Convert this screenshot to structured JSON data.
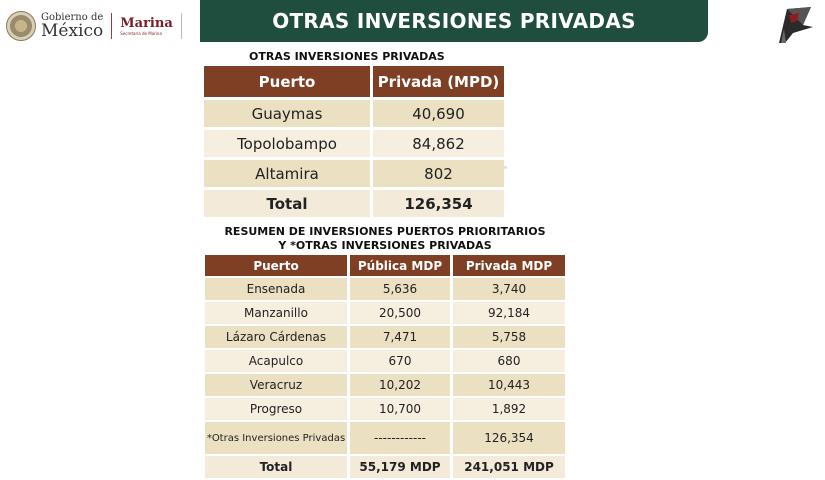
{
  "header": {
    "title": "OTRAS INVERSIONES PRIVADAS"
  },
  "logo": {
    "line1": "Gobierno de",
    "line2": "México",
    "marina": "Marina",
    "marina_sub": "Secretaría de Marina"
  },
  "table1": {
    "title": "OTRAS INVERSIONES PRIVADAS",
    "headers": [
      "Puerto",
      "Privada (MPD)"
    ],
    "rows": [
      [
        "Guaymas",
        "40,690"
      ],
      [
        "Topolobampo",
        "84,862"
      ],
      [
        "Altamira",
        "802"
      ]
    ],
    "total": [
      "Total",
      "126,354"
    ]
  },
  "table2": {
    "title_line1": "RESUMEN DE INVERSIONES PUERTOS PRIORITARIOS",
    "title_line2": "Y *OTRAS INVERSIONES PRIVADAS",
    "headers": [
      "Puerto",
      "Pública MDP",
      "Privada MDP"
    ],
    "rows": [
      [
        "Ensenada",
        "5,636",
        "3,740"
      ],
      [
        "Manzanillo",
        "20,500",
        "92,184"
      ],
      [
        "Lázaro Cárdenas",
        "7,471",
        "5,758"
      ],
      [
        "Acapulco",
        "670",
        "680"
      ],
      [
        "Veracruz",
        "10,202",
        "10,443"
      ],
      [
        "Progreso",
        "10,700",
        "1,892"
      ],
      [
        "*Otras Inversiones Privadas",
        "------------",
        "126,354"
      ]
    ],
    "total": [
      "Total",
      "55,179 MDP",
      "241,051 MDP"
    ]
  },
  "colors": {
    "header_green": "#1f4e3f",
    "table_header": "#7f3f24",
    "row_dark": "#ece0c3",
    "row_light": "#f6efe0"
  }
}
